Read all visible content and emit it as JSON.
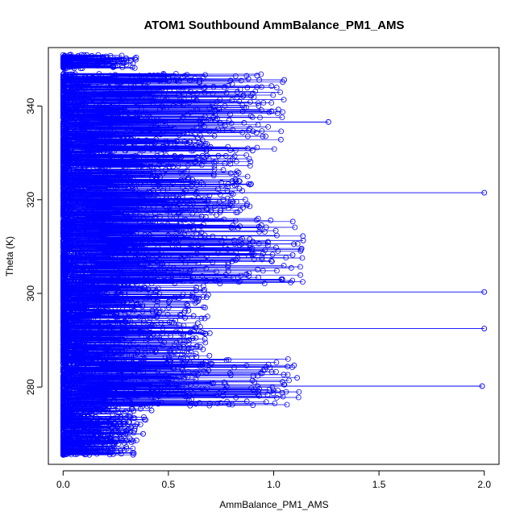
{
  "chart_data": {
    "type": "scatter",
    "style": "points-connected-by-lines",
    "title": "ATOM1 Southbound AmmBalance_PM1_AMS",
    "xlabel": "AmmBalance_PM1_AMS",
    "ylabel": "Theta (K)",
    "xlim": [
      -0.07,
      2.07
    ],
    "ylim": [
      263.5,
      352.5
    ],
    "xticks": [
      0.0,
      0.5,
      1.0,
      1.5,
      2.0
    ],
    "xtick_labels": [
      "0.0",
      "0.5",
      "1.0",
      "1.5",
      "2.0"
    ],
    "yticks": [
      280,
      300,
      320,
      340
    ],
    "ytick_labels": [
      "280",
      "300",
      "320",
      "340"
    ],
    "grid": false,
    "legend": "none",
    "series_color": "#0000ff",
    "notable_points": [
      {
        "x": 2.0,
        "y": 321.5
      },
      {
        "x": 2.0,
        "y": 300.3
      },
      {
        "x": 2.0,
        "y": 292.5
      },
      {
        "x": 1.99,
        "y": 280.2
      },
      {
        "x": 1.26,
        "y": 336.6
      },
      {
        "x": 1.14,
        "y": 311.3
      },
      {
        "x": 1.09,
        "y": 308.2
      },
      {
        "x": 1.05,
        "y": 345.6
      },
      {
        "x": 0.99,
        "y": 338.9
      },
      {
        "x": 0.9,
        "y": 330.5
      },
      {
        "x": 0.7,
        "y": 337.0
      },
      {
        "x": 0.55,
        "y": 299.0
      },
      {
        "x": 0.42,
        "y": 275.0
      },
      {
        "x": 0.38,
        "y": 270.0
      },
      {
        "x": 0.33,
        "y": 266.0
      },
      {
        "x": 0.3,
        "y": 268.5
      },
      {
        "x": 0.25,
        "y": 269.0
      },
      {
        "x": 0.15,
        "y": 266.2
      },
      {
        "x": 0.1,
        "y": 269.0
      },
      {
        "x": 0.05,
        "y": 273.0
      },
      {
        "x": 0.02,
        "y": 272.5
      },
      {
        "x": 0.03,
        "y": 350.5
      },
      {
        "x": 0.1,
        "y": 350.3
      },
      {
        "x": 0.3,
        "y": 350.2
      }
    ],
    "dense_cloud": {
      "description_of_density_regions": [
        {
          "y_range": [
            348,
            351
          ],
          "x_range": [
            0.0,
            0.35
          ]
        },
        {
          "y_range": [
            330,
            347
          ],
          "x_range": [
            0.0,
            1.05
          ]
        },
        {
          "y_range": [
            316,
            330
          ],
          "x_range": [
            0.0,
            0.9
          ]
        },
        {
          "y_range": [
            302,
            316
          ],
          "x_range": [
            0.0,
            1.14
          ]
        },
        {
          "y_range": [
            286,
            302
          ],
          "x_range": [
            0.0,
            0.7
          ]
        },
        {
          "y_range": [
            276,
            286
          ],
          "x_range": [
            0.0,
            1.12
          ]
        },
        {
          "y_range": [
            272,
            276
          ],
          "x_range": [
            0.0,
            0.4
          ]
        },
        {
          "y_range": [
            265.5,
            272
          ],
          "x_range": [
            0.0,
            0.35
          ]
        }
      ]
    }
  }
}
